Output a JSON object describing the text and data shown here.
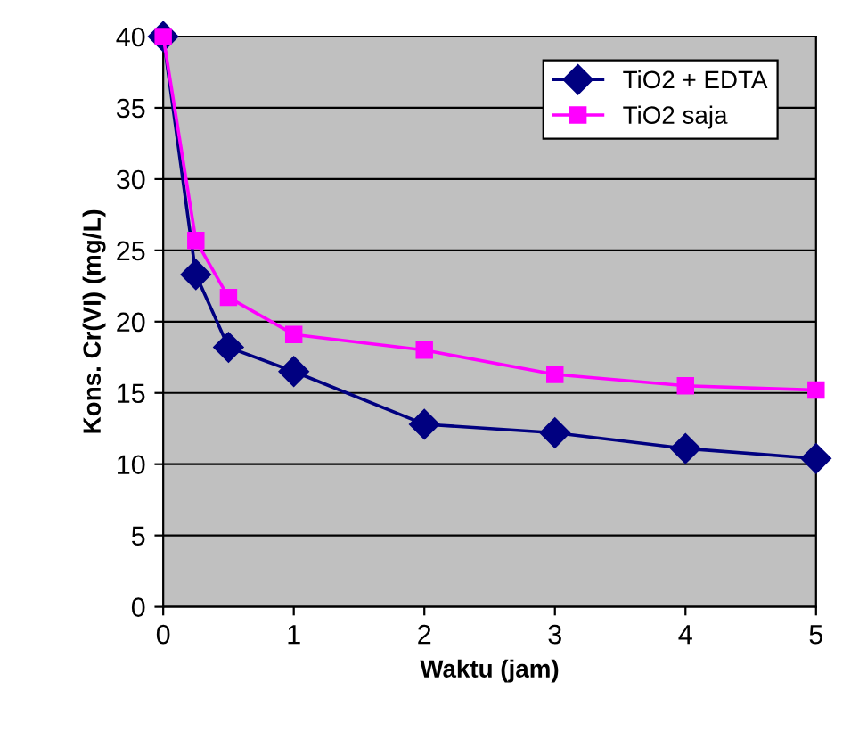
{
  "chart_data": {
    "type": "line",
    "xlabel": "Waktu (jam)",
    "ylabel": "Kons. Cr(VI) (mg/L)",
    "xlim": [
      0,
      5
    ],
    "xticks": [
      0,
      1,
      2,
      3,
      4,
      5
    ],
    "ylim": [
      0,
      40
    ],
    "yticks": [
      0,
      5,
      10,
      15,
      20,
      25,
      30,
      35,
      40
    ],
    "grid": "y",
    "legend": "top right",
    "series": [
      {
        "name": "TiO2 + EDTA",
        "color": "#000080",
        "marker": "diamond",
        "x": [
          0,
          0.25,
          0.5,
          1,
          2,
          3,
          4,
          5
        ],
        "values": [
          40,
          23.3,
          18.2,
          16.5,
          12.8,
          12.2,
          11.1,
          10.4
        ]
      },
      {
        "name": "TiO2 saja",
        "color": "#ff00ff",
        "marker": "square",
        "x": [
          0,
          0.25,
          0.5,
          1,
          2,
          3,
          4,
          5
        ],
        "values": [
          40,
          25.7,
          21.7,
          19.1,
          18.0,
          16.3,
          15.5,
          15.2
        ]
      }
    ]
  }
}
